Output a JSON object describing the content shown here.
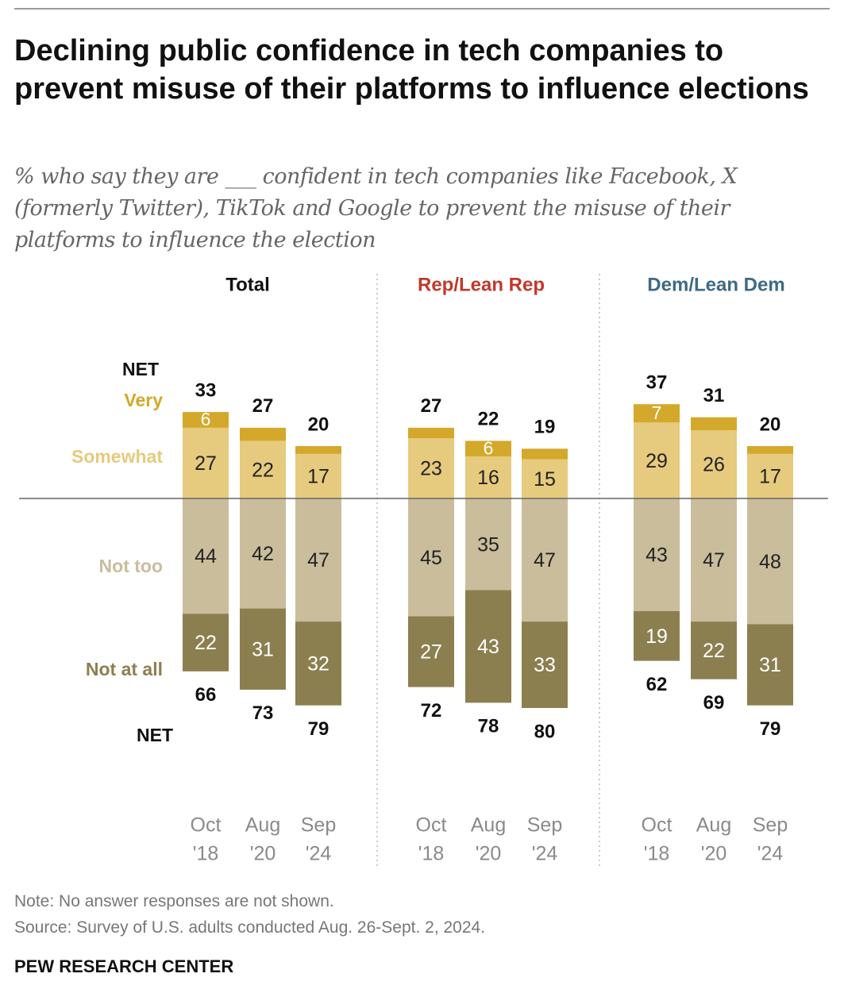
{
  "title": "Declining public confidence in tech companies to prevent misuse of their platforms to influence elections",
  "subtitle": "% who say they are ___ confident in tech companies like Facebook, X (formerly Twitter), TikTok and Google to prevent the misuse of their platforms to influence the election",
  "note": "Note: No answer responses are not shown.",
  "source": "Source: Survey of U.S. adults conducted Aug. 26-Sept. 2, 2024.",
  "footer": "PEW RESEARCH CENTER",
  "chart_data": {
    "type": "bar",
    "stacking": "diverging",
    "categories": [
      [
        "Oct",
        "'18"
      ],
      [
        "Aug",
        "'20"
      ],
      [
        "Sep",
        "'24"
      ]
    ],
    "row_labels": {
      "net_top": "NET",
      "very": "Very",
      "somewhat": "Somewhat",
      "not_too": "Not too",
      "not_at_all": "Not at all",
      "net_bottom": "NET"
    },
    "colors": {
      "very": "#d4a82a",
      "somewhat": "#e6ca7d",
      "not_too": "#c9bd9c",
      "not_at_all": "#8c7f4f",
      "rep_title": "#c0392b",
      "dem_title": "#3e6a86",
      "total_title": "#111111"
    },
    "panels": [
      {
        "title": "Total",
        "title_color": "total_title",
        "very": [
          6,
          5,
          3
        ],
        "somewhat": [
          27,
          22,
          17
        ],
        "not_too": [
          44,
          42,
          47
        ],
        "not_at_all": [
          22,
          31,
          32
        ],
        "net_confident": [
          33,
          27,
          20
        ],
        "net_not": [
          66,
          73,
          79
        ],
        "very_labels": [
          "6",
          "",
          ""
        ],
        "somewhat_labels": [
          "27",
          "22",
          "17"
        ],
        "not_too_labels": [
          "44",
          "42",
          "47"
        ],
        "not_at_all_labels": [
          "22",
          "31",
          "32"
        ]
      },
      {
        "title": "Rep/Lean Rep",
        "title_color": "rep_title",
        "very": [
          4,
          6,
          4
        ],
        "somewhat": [
          23,
          16,
          15
        ],
        "not_too": [
          45,
          35,
          47
        ],
        "not_at_all": [
          27,
          43,
          33
        ],
        "net_confident": [
          27,
          22,
          19
        ],
        "net_not": [
          72,
          78,
          80
        ],
        "very_labels": [
          "",
          "6",
          ""
        ],
        "somewhat_labels": [
          "23",
          "16",
          "15"
        ],
        "not_too_labels": [
          "45",
          "35",
          "47"
        ],
        "not_at_all_labels": [
          "27",
          "43",
          "33"
        ]
      },
      {
        "title": "Dem/Lean Dem",
        "title_color": "dem_title",
        "very": [
          7,
          5,
          3
        ],
        "somewhat": [
          29,
          26,
          17
        ],
        "not_too": [
          43,
          47,
          48
        ],
        "not_at_all": [
          19,
          22,
          31
        ],
        "net_confident": [
          37,
          31,
          20
        ],
        "net_not": [
          62,
          69,
          79
        ],
        "very_labels": [
          "7",
          "",
          ""
        ],
        "somewhat_labels": [
          "29",
          "26",
          "17"
        ],
        "not_too_labels": [
          "43",
          "47",
          "48"
        ],
        "not_at_all_labels": [
          "19",
          "22",
          "31"
        ]
      }
    ]
  }
}
